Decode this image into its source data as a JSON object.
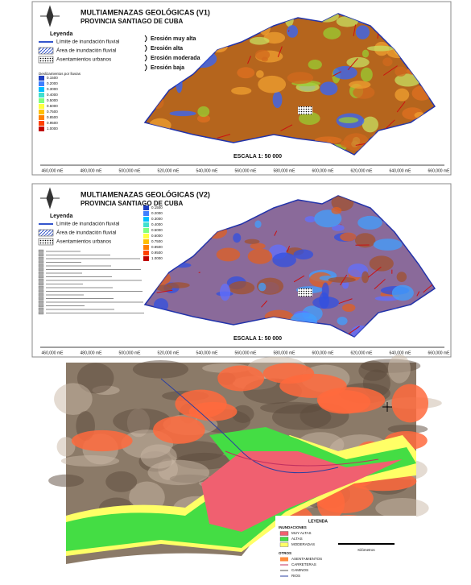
{
  "panels": [
    {
      "title": "MULTIAMENAZAS GEOLÓGICAS (V1)",
      "subtitle": "PROVINCIA SANTIAGO DE CUBA",
      "legend_title": "Leyenda",
      "legend_items": [
        "Límite de inundación fluvial",
        "Área de inundación fluvial",
        "Asentamientos urbanos"
      ],
      "erosion_items": [
        "Erosión muy alta",
        "Erosión alta",
        "Erosión moderada",
        "Erosión baja"
      ],
      "ramp_title": "Deslizamientos por lluvias",
      "ramp_labels": [
        "0.1500",
        "0.2000",
        "0.3000",
        "0.4000",
        "0.5000",
        "0.6000",
        "0.7500",
        "0.8500",
        "0.9500",
        "1.0000"
      ],
      "scale": "ESCALA 1: 50 000",
      "x_labels": [
        "460,000 mE",
        "480,000 mE",
        "500,000 mE",
        "520,000 mE",
        "540,000 mE",
        "560,000 mE",
        "580,000 mE",
        "600,000 mE",
        "620,000 mE",
        "640,000 mE",
        "660,000 mE"
      ]
    },
    {
      "title": "MULTIAMENAZAS GEOLÓGICAS (V2)",
      "subtitle": "PROVINCIA SANTIAGO DE CUBA",
      "legend_title": "Leyenda",
      "legend_items": [
        "Límite de inundación fluvial",
        "Área de inundación fluvial",
        "Asentamientos urbanos"
      ],
      "ramp_labels": [
        "0.1500",
        "0.2000",
        "0.3000",
        "0.4000",
        "0.5000",
        "0.6000",
        "0.7500",
        "0.8500",
        "0.9500",
        "1.0000"
      ],
      "scale": "ESCALA 1: 50 000",
      "x_labels": [
        "460,000 mE",
        "480,000 mE",
        "500,000 mE",
        "520,000 mE",
        "540,000 mE",
        "560,000 mE",
        "580,000 mE",
        "600,000 mE",
        "620,000 mE",
        "640,000 mE",
        "660,000 mE"
      ]
    }
  ],
  "flood_map": {
    "legend_title": "LEYENDA",
    "group1": "INUNDACIONES",
    "items1": [
      "MUY ALTAS",
      "ALTAS",
      "MODERADAS"
    ],
    "group2": "OTROS",
    "items2": [
      "ASENTAMIENTOS",
      "CARRETERAS",
      "CAMINOS",
      "RIOS"
    ],
    "scale_unit": "Kilómetros"
  }
}
